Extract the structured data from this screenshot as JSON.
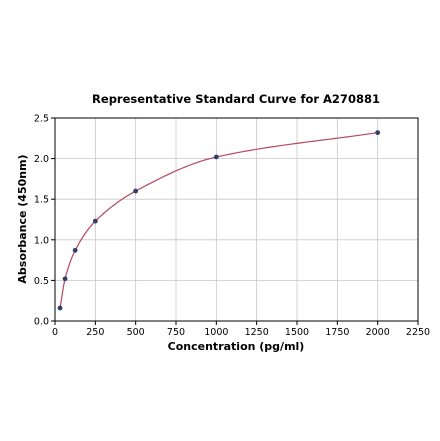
{
  "chart_data": {
    "type": "scatter",
    "title": "Representative Standard Curve for A270881",
    "xlabel": "Concentration (pg/ml)",
    "ylabel": "Absorbance (450nm)",
    "xlim": [
      0,
      2250
    ],
    "ylim": [
      0,
      2.5
    ],
    "xticks": [
      0,
      250,
      500,
      750,
      1000,
      1250,
      1500,
      1750,
      2000,
      2250
    ],
    "yticks": [
      0.0,
      0.5,
      1.0,
      1.5,
      2.0,
      2.5
    ],
    "xtick_labels": [
      "0",
      "250",
      "500",
      "750",
      "1000",
      "1250",
      "1500",
      "1750",
      "2000",
      "2250"
    ],
    "ytick_labels": [
      "0.0",
      "0.5",
      "1.0",
      "1.5",
      "2.0",
      "2.5"
    ],
    "grid": true,
    "colors": {
      "curve": "#b5485f",
      "points": "#2f3f6e",
      "grid": "#c8c8c8"
    },
    "series": [
      {
        "x": [
          31.25,
          62.5,
          125,
          250,
          500,
          1000,
          2000
        ],
        "y": [
          0.16,
          0.52,
          0.87,
          1.23,
          1.6,
          2.02,
          2.32
        ]
      }
    ]
  }
}
